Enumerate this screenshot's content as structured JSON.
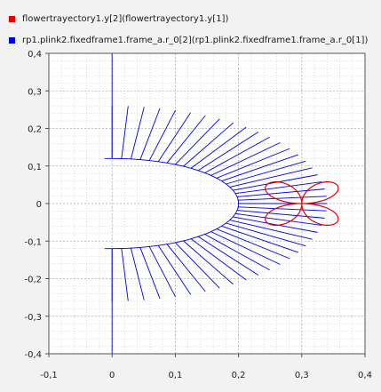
{
  "chart_data": {
    "type": "line",
    "title": "",
    "xlabel": "",
    "ylabel": "",
    "xlim": [
      -0.1,
      0.4
    ],
    "ylim": [
      -0.4,
      0.4
    ],
    "grid": true,
    "legend_position": "top-left",
    "x_ticks": [
      -0.1,
      0,
      0.1,
      0.2,
      0.3,
      0.4
    ],
    "x_tick_labels": [
      "-0,1",
      "0",
      "0,1",
      "0,2",
      "0,3",
      "0,4"
    ],
    "y_ticks": [
      0.4,
      0.3,
      0.2,
      0.1,
      0,
      -0.1,
      -0.2,
      -0.3,
      -0.4
    ],
    "y_tick_labels": [
      "0,4",
      "0,3",
      "0,2",
      "0,1",
      "0",
      "-0,1",
      "-0,2",
      "-0,3",
      "-0,4"
    ],
    "series": [
      {
        "name": "flowertrayectory1.y[2](flowertrayectory1.y[1])",
        "color": "#e00000",
        "shape": "four-petal rose",
        "center": [
          0.3,
          0.0
        ],
        "petal_length": 0.075,
        "petal_count": 4
      },
      {
        "name": "rp1.plink2.fixedframe1.frame_a.r_0[2](rp1.plink2.fixedframe1.frame_a.r_0[1])",
        "color": "#0000e0",
        "shape": "radial link sweep",
        "inner_boundary": "half-ellipse from (0, 0.12) through (0.2, 0) to (0, -0.12)",
        "inner_semi_axes": [
          0.2,
          0.12
        ],
        "link_count": 43,
        "link_length": 0.14,
        "angle_range_deg": [
          -90,
          90
        ],
        "extended_end_links": {
          "top": [
            [
              0,
              0.12
            ],
            [
              0,
              0.4
            ]
          ],
          "bottom": [
            [
              0,
              -0.12
            ],
            [
              0,
              -0.4
            ]
          ]
        }
      }
    ]
  }
}
